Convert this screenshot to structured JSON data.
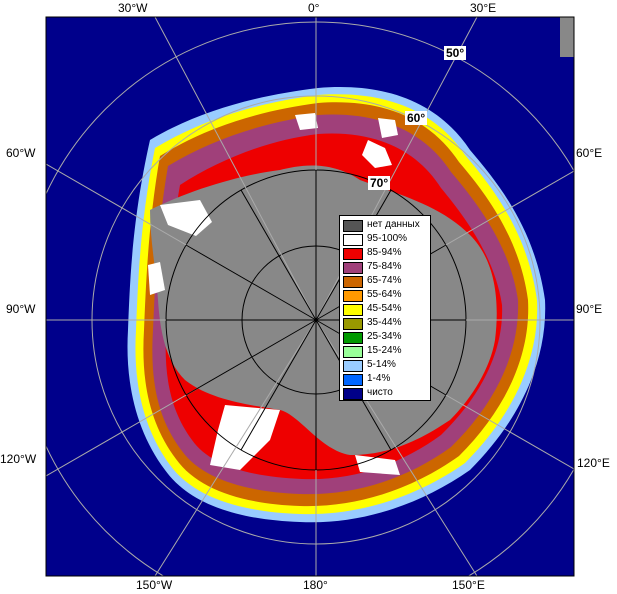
{
  "lon_labels": {
    "w30": "30°W",
    "zero": "0°",
    "e30": "30°E",
    "w60": "60°W",
    "e60": "60°E",
    "w90": "90°W",
    "e90": "90°E",
    "w120": "120°W",
    "e120": "120°E",
    "w150": "150°W",
    "d180": "180°",
    "e150": "150°E"
  },
  "lat_labels": {
    "l50": "50°",
    "l60": "60°",
    "l70": "70°"
  },
  "colors": {
    "ocean": "#00008b",
    "land": "#888888",
    "nodata": "#555555",
    "c95": "#ffffff",
    "c85": "#ee0000",
    "c75": "#a0407a",
    "c65": "#cc6600",
    "c55": "#ff9900",
    "c45": "#ffff00",
    "c35": "#999900",
    "c25": "#009900",
    "c15": "#99ff99",
    "c5": "#99ccff",
    "c1": "#0066ff",
    "clear": "#000088"
  },
  "legend": [
    {
      "label": "нет данных",
      "color": "#555555"
    },
    {
      "label": "95-100%",
      "color": "#ffffff"
    },
    {
      "label": "85-94%",
      "color": "#ee0000"
    },
    {
      "label": "75-84%",
      "color": "#a0407a"
    },
    {
      "label": "65-74%",
      "color": "#cc6600"
    },
    {
      "label": "55-64%",
      "color": "#ff9900"
    },
    {
      "label": "45-54%",
      "color": "#ffff00"
    },
    {
      "label": "35-44%",
      "color": "#999900"
    },
    {
      "label": "25-34%",
      "color": "#009900"
    },
    {
      "label": "15-24%",
      "color": "#99ff99"
    },
    {
      "label": "5-14%",
      "color": "#99ccff"
    },
    {
      "label": "1-4%",
      "color": "#0066ff"
    },
    {
      "label": "чисто",
      "color": "#000088"
    }
  ]
}
